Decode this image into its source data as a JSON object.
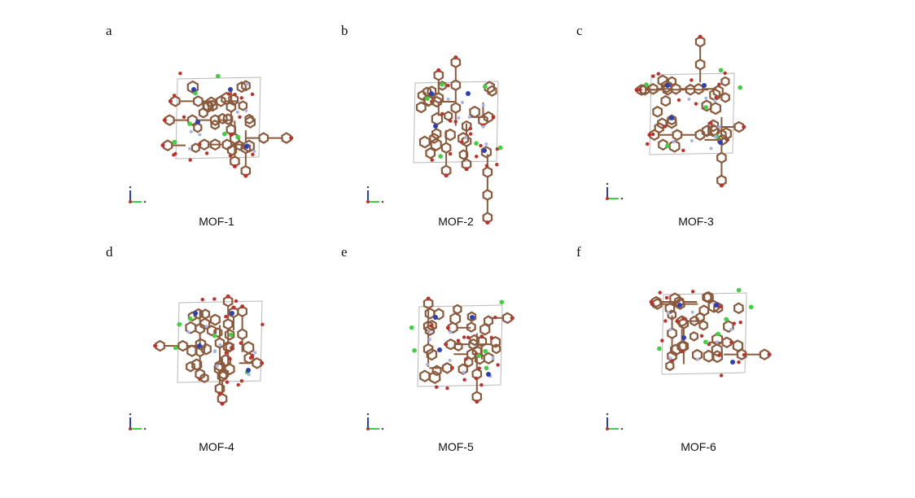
{
  "panels": [
    {
      "letter": "a",
      "label": "MOF-1"
    },
    {
      "letter": "b",
      "label": "MOF-2"
    },
    {
      "letter": "c",
      "label": "MOF-3"
    },
    {
      "letter": "d",
      "label": "MOF-4"
    },
    {
      "letter": "e",
      "label": "MOF-5"
    },
    {
      "letter": "f",
      "label": "MOF-6"
    }
  ],
  "colors": {
    "carbon": "#8b5a3c",
    "oxygen": "#c0302a",
    "chlorine": "#3fcf3f",
    "metal": "#2a3fb8",
    "nitrogen": "#a8b4e8",
    "cell": "#b8b8b8"
  }
}
